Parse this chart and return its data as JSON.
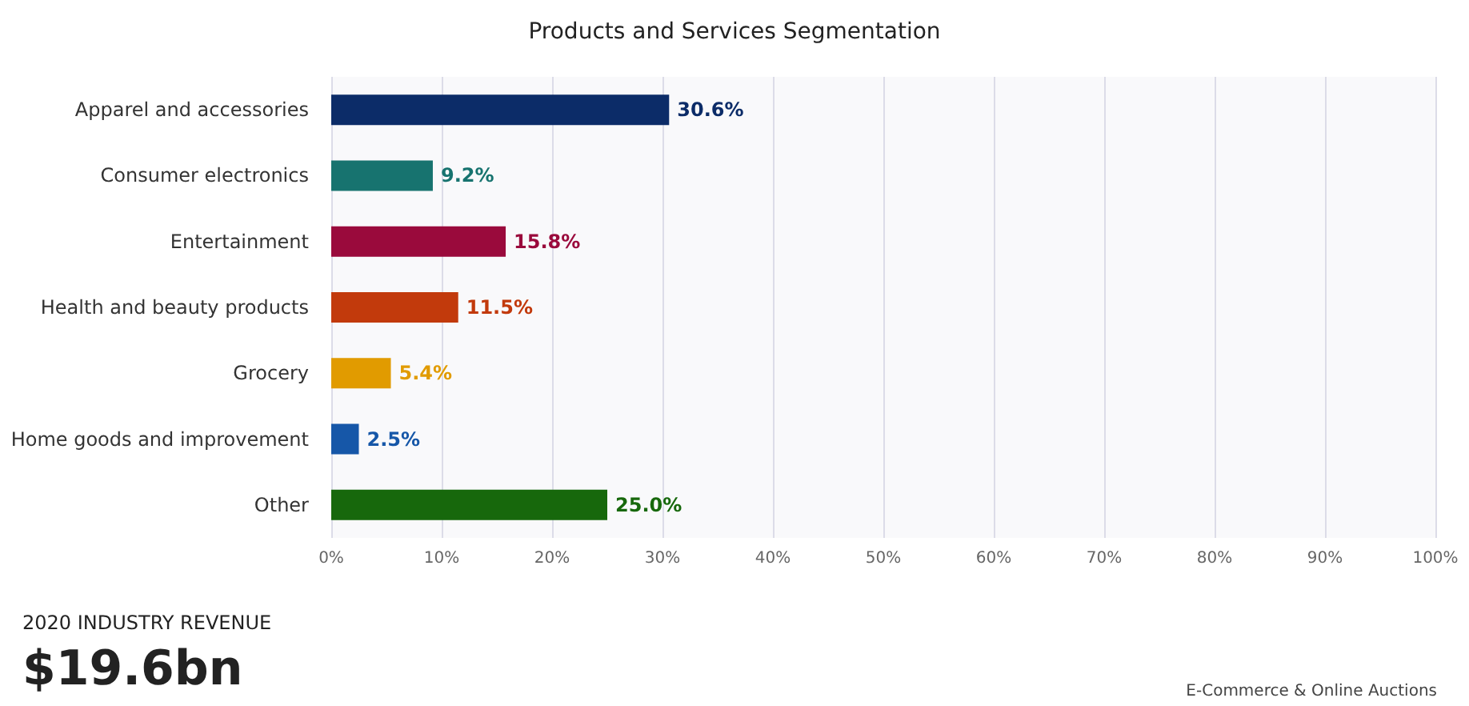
{
  "chart_data": {
    "type": "bar",
    "orientation": "horizontal",
    "title": "Products and Services Segmentation",
    "categories": [
      "Apparel and accessories",
      "Consumer electronics",
      "Entertainment",
      "Health and beauty products",
      "Grocery",
      "Home goods and improvement",
      "Other"
    ],
    "values": [
      30.6,
      9.2,
      15.8,
      11.5,
      5.4,
      2.5,
      25.0
    ],
    "colors": [
      "#0c2c68",
      "#17736f",
      "#9a0a3c",
      "#c23a0c",
      "#e19b00",
      "#1657a8",
      "#17680c"
    ],
    "value_labels": [
      "30.6%",
      "9.2%",
      "15.8%",
      "11.5%",
      "5.4%",
      "2.5%",
      "25.0%"
    ],
    "xlim": [
      0,
      100
    ],
    "xticks": [
      {
        "value": 0,
        "label": "0%"
      },
      {
        "value": 10,
        "label": "10%"
      },
      {
        "value": 20,
        "label": "20%"
      },
      {
        "value": 30,
        "label": "30%"
      },
      {
        "value": 40,
        "label": "40%"
      },
      {
        "value": 50,
        "label": "50%"
      },
      {
        "value": 60,
        "label": "60%"
      },
      {
        "value": 70,
        "label": "70%"
      },
      {
        "value": 80,
        "label": "80%"
      },
      {
        "value": 90,
        "label": "90%"
      },
      {
        "value": 100,
        "label": "100%"
      }
    ],
    "grid": "x",
    "annotations": [
      "2020 INDUSTRY REVENUE",
      "$19.6bn",
      "E-Commerce & Online Auctions"
    ]
  }
}
